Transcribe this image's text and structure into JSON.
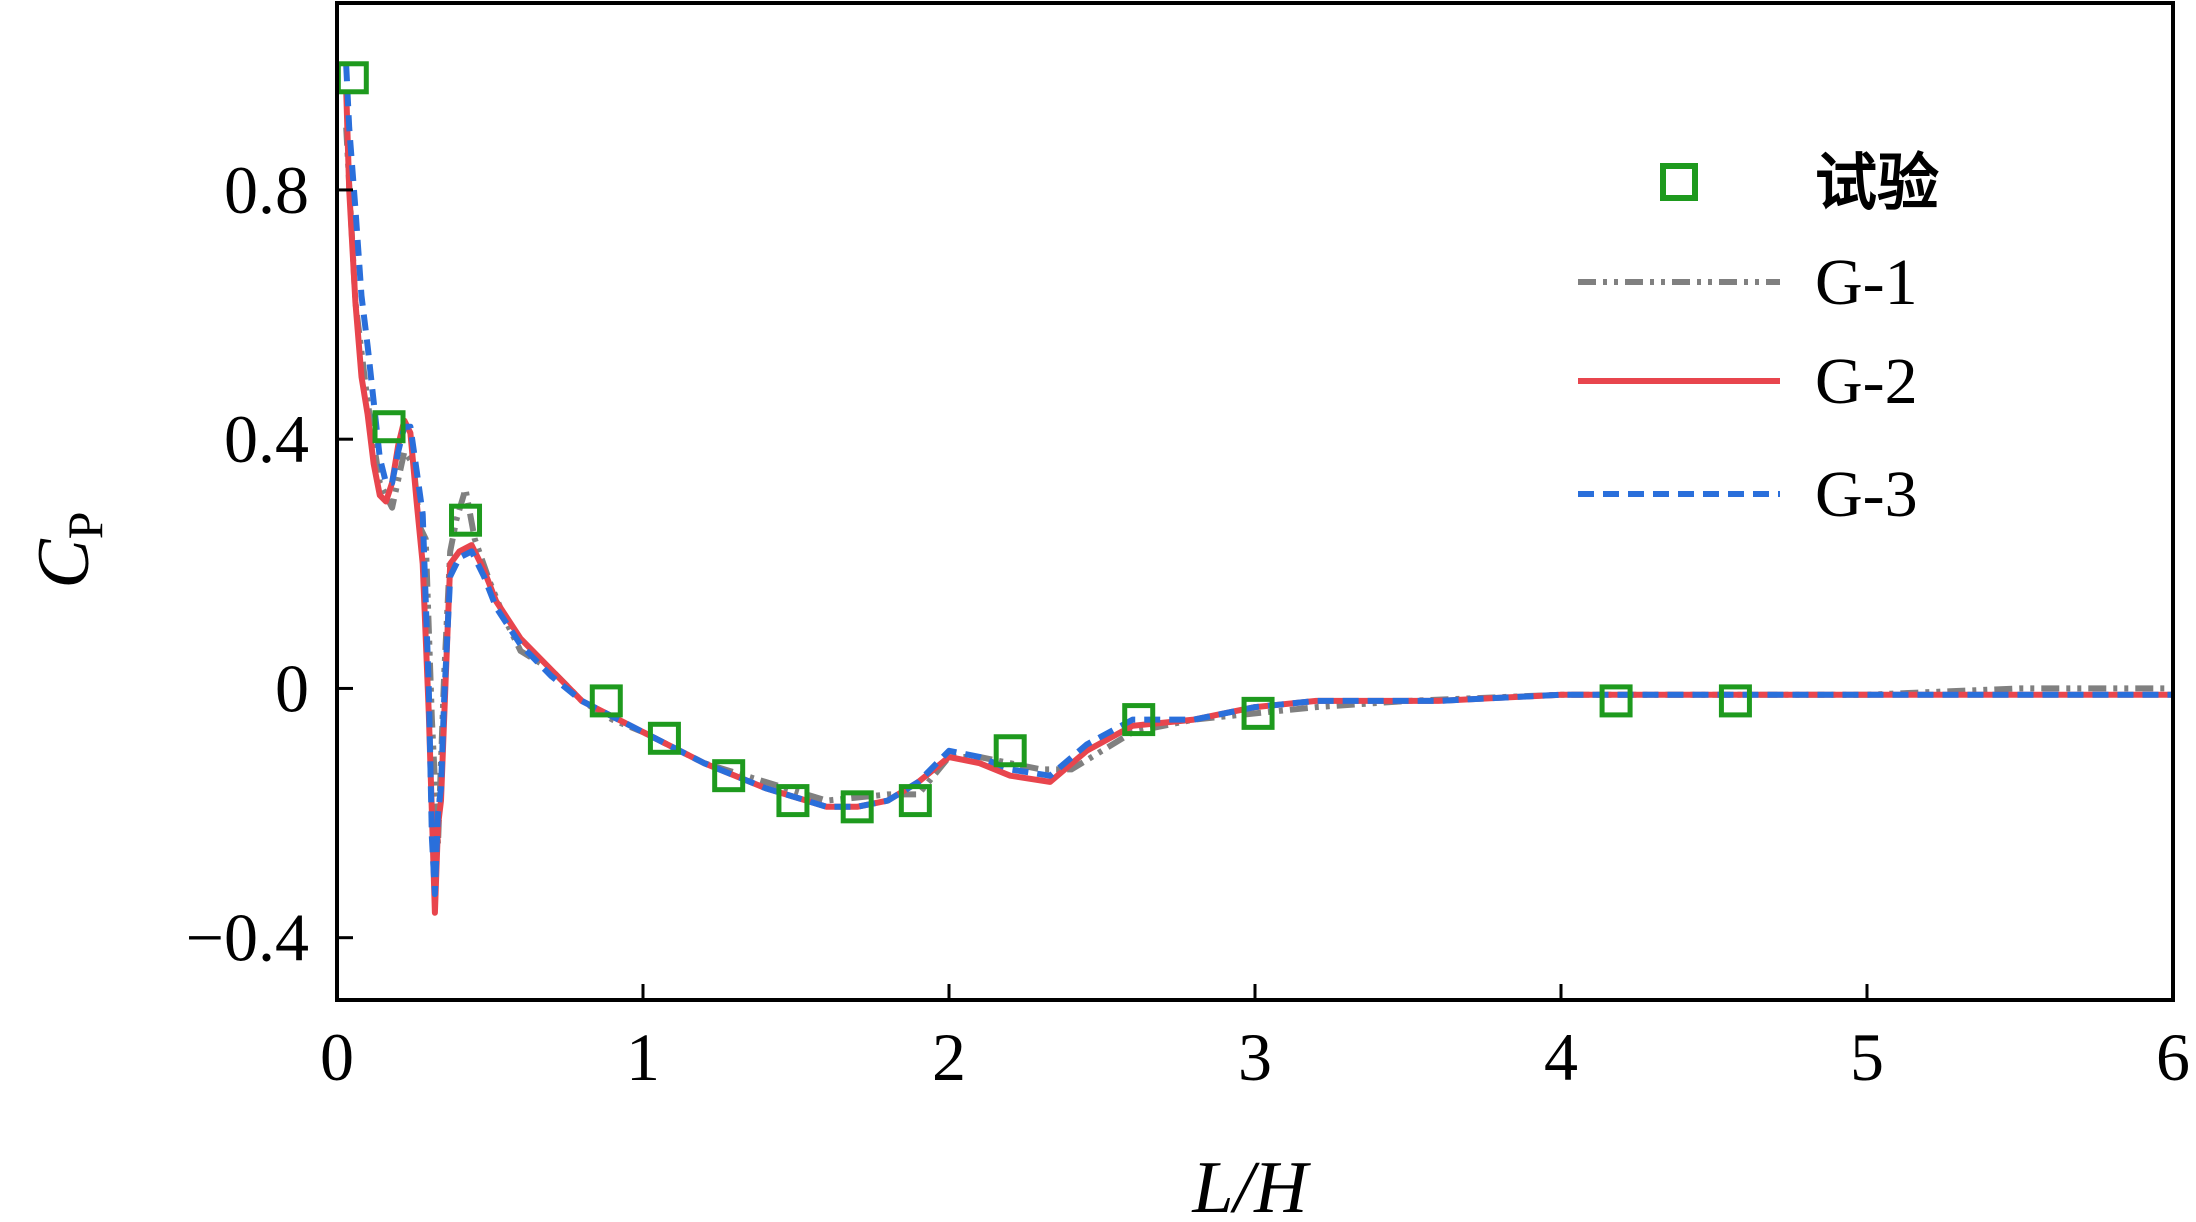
{
  "chart_data": {
    "type": "line",
    "title": "",
    "xlabel": "L/H",
    "ylabel": {
      "main": "C",
      "sub": "P"
    },
    "xlim": [
      0,
      6
    ],
    "ylim": [
      -0.5,
      1.1
    ],
    "x_ticks": [
      0,
      1,
      2,
      3,
      4,
      5,
      6
    ],
    "x_tick_labels": [
      "0",
      "1",
      "2",
      "3",
      "4",
      "5",
      "6"
    ],
    "y_ticks": [
      -0.4,
      0,
      0.4,
      0.8
    ],
    "y_tick_labels": [
      "−0.4",
      "0",
      "0.4",
      "0.8"
    ],
    "grid": false,
    "legend_position": "top-right",
    "colors": {
      "experiment": "#1e9a1e",
      "G-1": "#808080",
      "G-2": "#e8454d",
      "G-3": "#2a6fdb"
    },
    "series": [
      {
        "name": "试验",
        "kind": "markers",
        "x": [
          0.05,
          0.17,
          0.42,
          0.88,
          1.07,
          1.28,
          1.49,
          1.7,
          1.89,
          2.2,
          2.62,
          3.01,
          4.18,
          4.57
        ],
        "y": [
          0.98,
          0.42,
          0.27,
          -0.02,
          -0.08,
          -0.14,
          -0.18,
          -0.19,
          -0.18,
          -0.1,
          -0.05,
          -0.04,
          -0.02,
          -0.02
        ]
      },
      {
        "name": "G-1",
        "kind": "dash-dot",
        "x": [
          0.03,
          0.06,
          0.1,
          0.14,
          0.18,
          0.22,
          0.25,
          0.27,
          0.29,
          0.31,
          0.33,
          0.35,
          0.37,
          0.39,
          0.42,
          0.45,
          0.5,
          0.55,
          0.6,
          0.7,
          0.8,
          0.9,
          1.0,
          1.2,
          1.4,
          1.6,
          1.8,
          1.9,
          2.0,
          2.1,
          2.2,
          2.3,
          2.4,
          2.5,
          2.6,
          2.8,
          3.0,
          3.2,
          3.5,
          4.0,
          4.5,
          5.0,
          5.5,
          6.0
        ],
        "y": [
          0.9,
          0.62,
          0.46,
          0.33,
          0.29,
          0.38,
          0.36,
          0.26,
          0.24,
          -0.05,
          -0.25,
          0.02,
          0.22,
          0.27,
          0.32,
          0.24,
          0.17,
          0.11,
          0.06,
          0.03,
          -0.02,
          -0.05,
          -0.07,
          -0.12,
          -0.15,
          -0.18,
          -0.17,
          -0.17,
          -0.11,
          -0.11,
          -0.12,
          -0.13,
          -0.13,
          -0.1,
          -0.07,
          -0.05,
          -0.04,
          -0.03,
          -0.02,
          -0.01,
          -0.01,
          -0.01,
          0.0,
          0.0
        ]
      },
      {
        "name": "G-2",
        "kind": "solid",
        "x": [
          0.03,
          0.04,
          0.06,
          0.08,
          0.1,
          0.12,
          0.14,
          0.16,
          0.18,
          0.2,
          0.22,
          0.24,
          0.26,
          0.28,
          0.3,
          0.31,
          0.32,
          0.33,
          0.34,
          0.35,
          0.37,
          0.4,
          0.44,
          0.48,
          0.52,
          0.6,
          0.7,
          0.8,
          1.0,
          1.2,
          1.4,
          1.6,
          1.7,
          1.8,
          1.9,
          2.0,
          2.1,
          2.2,
          2.33,
          2.45,
          2.6,
          2.8,
          3.0,
          3.2,
          3.6,
          4.0,
          4.5,
          5.0,
          5.5,
          6.0
        ],
        "y": [
          0.96,
          0.8,
          0.62,
          0.5,
          0.44,
          0.36,
          0.31,
          0.3,
          0.33,
          0.39,
          0.43,
          0.41,
          0.3,
          0.2,
          -0.04,
          -0.2,
          -0.36,
          -0.22,
          -0.18,
          -0.05,
          0.2,
          0.22,
          0.23,
          0.19,
          0.14,
          0.08,
          0.03,
          -0.02,
          -0.07,
          -0.12,
          -0.16,
          -0.19,
          -0.19,
          -0.18,
          -0.15,
          -0.11,
          -0.12,
          -0.14,
          -0.15,
          -0.1,
          -0.06,
          -0.05,
          -0.03,
          -0.02,
          -0.02,
          -0.01,
          -0.01,
          -0.01,
          -0.01,
          -0.01
        ]
      },
      {
        "name": "G-3",
        "kind": "dashed",
        "x": [
          0.03,
          0.04,
          0.06,
          0.08,
          0.1,
          0.12,
          0.14,
          0.16,
          0.18,
          0.2,
          0.22,
          0.24,
          0.26,
          0.28,
          0.3,
          0.31,
          0.32,
          0.33,
          0.34,
          0.35,
          0.37,
          0.4,
          0.44,
          0.48,
          0.52,
          0.6,
          0.7,
          0.8,
          1.0,
          1.2,
          1.4,
          1.6,
          1.7,
          1.8,
          1.9,
          2.0,
          2.1,
          2.2,
          2.33,
          2.45,
          2.6,
          2.8,
          3.0,
          3.2,
          3.6,
          4.0,
          4.5,
          5.0,
          5.5,
          6.0
        ],
        "y": [
          1.0,
          0.9,
          0.77,
          0.63,
          0.55,
          0.46,
          0.37,
          0.33,
          0.33,
          0.38,
          0.42,
          0.42,
          0.35,
          0.28,
          0.0,
          -0.24,
          -0.33,
          -0.2,
          -0.16,
          -0.02,
          0.18,
          0.21,
          0.22,
          0.18,
          0.13,
          0.07,
          0.02,
          -0.02,
          -0.07,
          -0.12,
          -0.16,
          -0.19,
          -0.19,
          -0.18,
          -0.15,
          -0.1,
          -0.11,
          -0.13,
          -0.14,
          -0.09,
          -0.05,
          -0.05,
          -0.03,
          -0.02,
          -0.02,
          -0.01,
          -0.01,
          -0.01,
          -0.01,
          -0.01
        ]
      }
    ]
  }
}
